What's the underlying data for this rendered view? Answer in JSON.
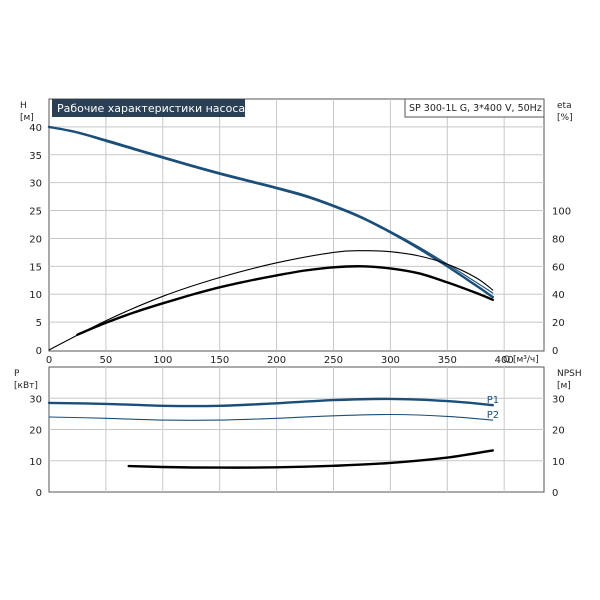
{
  "chart_data": [
    {
      "type": "line",
      "title": "Рабочие характеристики насоса",
      "subtitle": "SP 300-1L G, 3*400 V, 50Hz",
      "xlabel": "Q [м³/ч]",
      "ylabel": "H [м]",
      "y2label": "eta [%]",
      "xlim": [
        0,
        435
      ],
      "ylim": [
        0,
        45
      ],
      "y2lim": [
        0,
        180
      ],
      "x_ticks": [
        0,
        50,
        100,
        150,
        200,
        250,
        300,
        350,
        400
      ],
      "y_ticks": [
        0,
        5,
        10,
        15,
        20,
        25,
        30,
        35,
        40
      ],
      "y2_ticks": [
        0,
        20,
        40,
        60,
        80,
        100
      ],
      "grid": true,
      "series": [
        {
          "axis": "left",
          "color": "#1b4f7a",
          "style": "bold",
          "x": [
            0,
            25,
            50,
            75,
            100,
            125,
            150,
            175,
            200,
            225,
            250,
            275,
            300,
            325,
            350,
            375,
            390
          ],
          "values": [
            40.0,
            39.0,
            37.5,
            36.0,
            34.5,
            33.0,
            31.6,
            30.3,
            29.0,
            27.6,
            25.8,
            23.7,
            21.1,
            18.2,
            15.0,
            11.6,
            9.5
          ]
        },
        {
          "axis": "left",
          "color": "#1b4f7a",
          "style": "thin",
          "x": [
            0,
            25,
            50,
            75,
            100,
            125,
            150,
            175,
            200,
            225,
            250,
            275,
            300,
            325,
            350,
            375,
            390
          ],
          "values": [
            40.0,
            39.1,
            37.7,
            36.2,
            34.7,
            33.2,
            31.8,
            30.5,
            29.2,
            27.8,
            26.0,
            23.9,
            21.3,
            18.5,
            15.4,
            12.2,
            10.2
          ]
        },
        {
          "axis": "right",
          "color": "#000000",
          "style": "thin",
          "x": [
            0,
            50,
            100,
            150,
            200,
            250,
            275,
            300,
            325,
            350,
            375,
            390
          ],
          "values": [
            0,
            21,
            38.5,
            52,
            62.5,
            70,
            71.2,
            70.5,
            67.5,
            61.5,
            52,
            43
          ]
        },
        {
          "axis": "right",
          "color": "#000000",
          "style": "bold",
          "x": [
            25,
            50,
            75,
            100,
            125,
            150,
            175,
            200,
            225,
            250,
            275,
            300,
            325,
            350,
            375,
            390
          ],
          "values": [
            11,
            19.5,
            27,
            33.5,
            39.5,
            45,
            49.5,
            53.5,
            57,
            59.3,
            60,
            58.5,
            55,
            48.5,
            41,
            36
          ]
        }
      ]
    },
    {
      "type": "line",
      "ylabel": "P [кВт]",
      "y2label": "NPSH [м]",
      "xlim": [
        0,
        435
      ],
      "ylim": [
        0,
        40
      ],
      "y2lim": [
        0,
        40
      ],
      "y_ticks": [
        0,
        10,
        20,
        30
      ],
      "y2_ticks": [
        0,
        10,
        20,
        30
      ],
      "grid": true,
      "series": [
        {
          "name": "P1",
          "axis": "left",
          "color": "#1b4f7a",
          "style": "bold",
          "x": [
            0,
            50,
            100,
            150,
            200,
            250,
            300,
            350,
            390
          ],
          "values": [
            28.5,
            28.2,
            27.6,
            27.6,
            28.4,
            29.4,
            29.8,
            29.1,
            27.8
          ]
        },
        {
          "name": "P2",
          "axis": "left",
          "color": "#1b4f7a",
          "style": "thin",
          "x": [
            0,
            50,
            100,
            150,
            200,
            250,
            300,
            350,
            390
          ],
          "values": [
            24.0,
            23.6,
            23.0,
            23.0,
            23.6,
            24.4,
            24.8,
            24.2,
            23.0
          ]
        },
        {
          "axis": "right",
          "color": "#000000",
          "style": "bold",
          "x": [
            70,
            100,
            150,
            200,
            250,
            300,
            350,
            390
          ],
          "values": [
            8.3,
            8.0,
            7.8,
            7.9,
            8.4,
            9.3,
            11.0,
            13.3
          ]
        }
      ]
    }
  ]
}
